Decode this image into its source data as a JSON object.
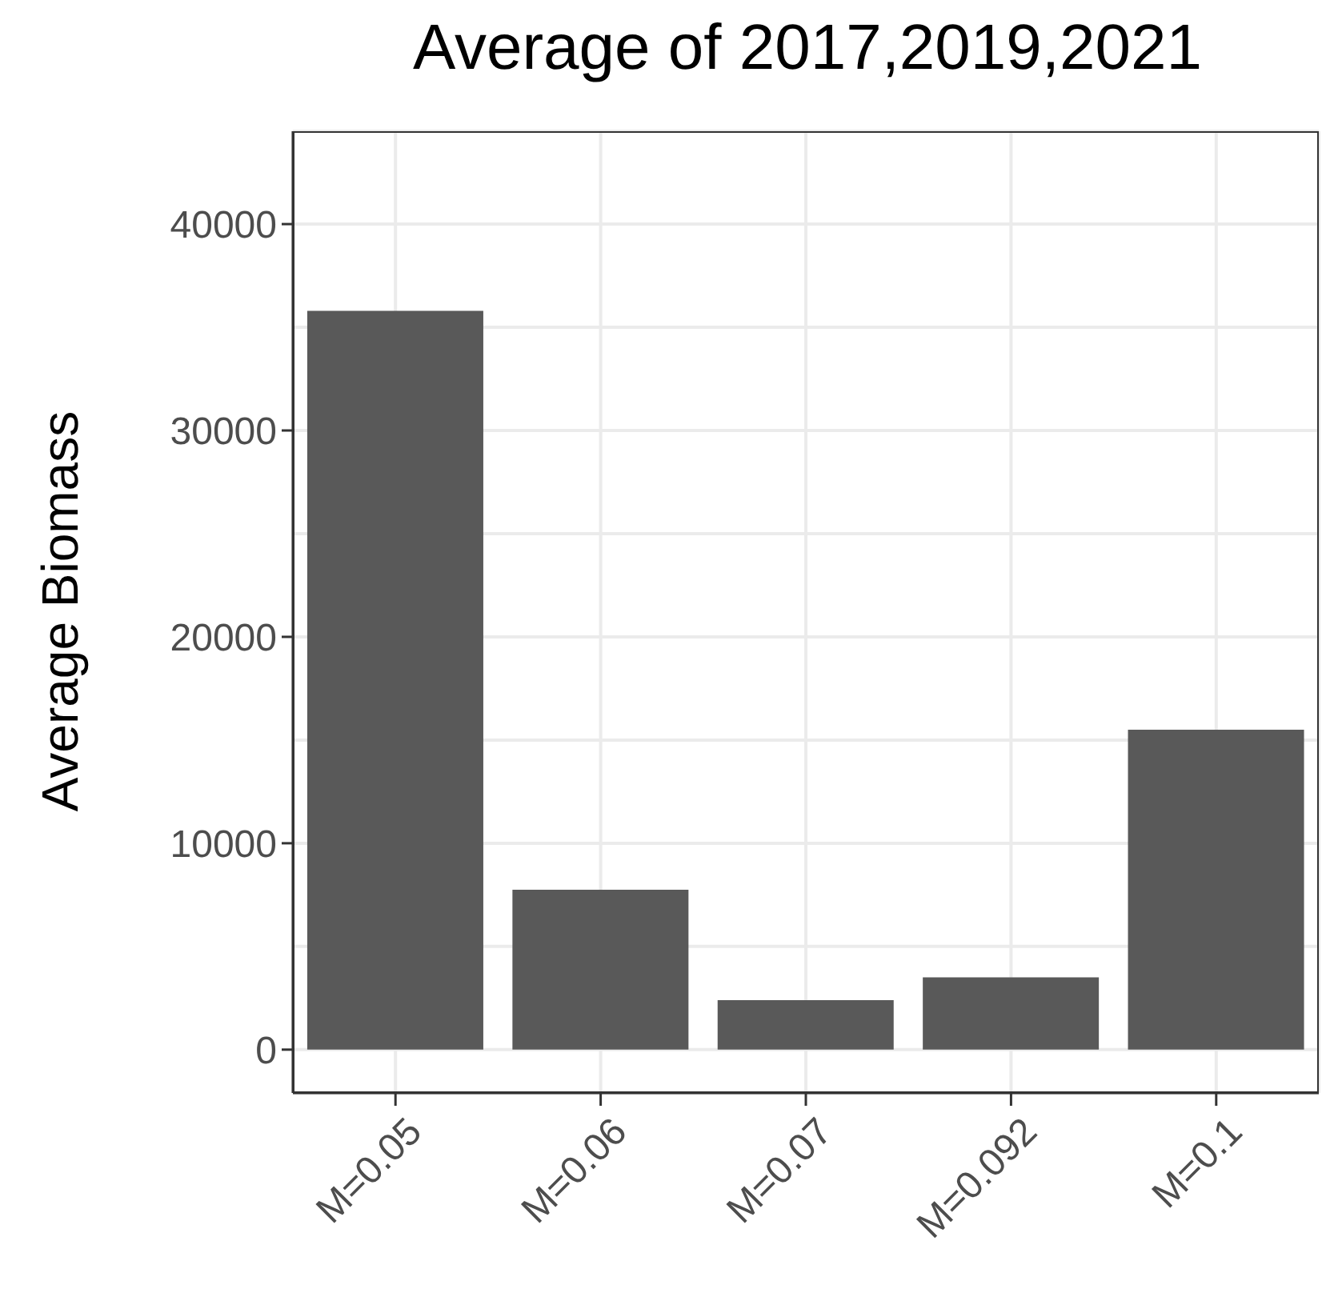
{
  "chart_data": {
    "type": "bar",
    "title": "Average of 2017,2019,2021",
    "ylabel": "Average Biomass",
    "categories": [
      "M=0.05",
      "M=0.06",
      "M=0.07",
      "M=0.092",
      "M=0.1"
    ],
    "values": [
      35800,
      7750,
      2400,
      3500,
      15500
    ],
    "color": "#595959",
    "ylim": [
      -2100,
      44500
    ],
    "yticks": [
      0,
      {
        "value": 5000,
        "label": null
      },
      10000,
      {
        "value": 15000,
        "label": null
      },
      20000,
      {
        "value": 25000,
        "label": null
      },
      30000,
      {
        "value": 35000,
        "label": null
      },
      40000
    ],
    "grid": true
  }
}
